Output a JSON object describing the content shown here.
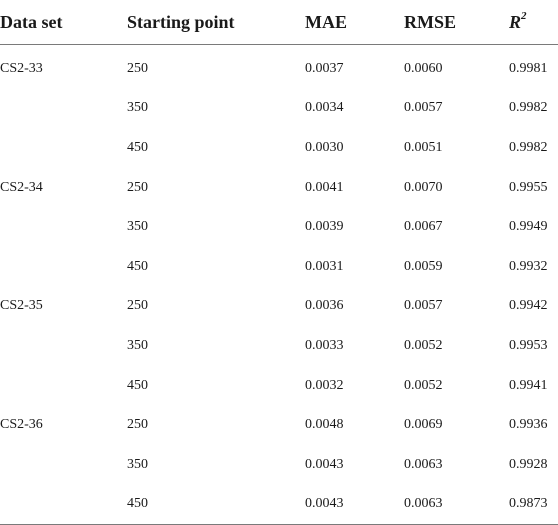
{
  "table": {
    "headers": {
      "data_set": "Data set",
      "starting_point": "Starting point",
      "mae": "MAE",
      "rmse": "RMSE",
      "r2_base": "R",
      "r2_sup": "2"
    },
    "rows": [
      {
        "data_set": "CS2-33",
        "start": "250",
        "mae": "0.0037",
        "rmse": "0.0060",
        "r2": "0.9981"
      },
      {
        "data_set": "",
        "start": "350",
        "mae": "0.0034",
        "rmse": "0.0057",
        "r2": "0.9982"
      },
      {
        "data_set": "",
        "start": "450",
        "mae": "0.0030",
        "rmse": "0.0051",
        "r2": "0.9982"
      },
      {
        "data_set": "CS2-34",
        "start": "250",
        "mae": "0.0041",
        "rmse": "0.0070",
        "r2": "0.9955"
      },
      {
        "data_set": "",
        "start": "350",
        "mae": "0.0039",
        "rmse": "0.0067",
        "r2": "0.9949"
      },
      {
        "data_set": "",
        "start": "450",
        "mae": "0.0031",
        "rmse": "0.0059",
        "r2": "0.9932"
      },
      {
        "data_set": "CS2-35",
        "start": "250",
        "mae": "0.0036",
        "rmse": "0.0057",
        "r2": "0.9942"
      },
      {
        "data_set": "",
        "start": "350",
        "mae": "0.0033",
        "rmse": "0.0052",
        "r2": "0.9953"
      },
      {
        "data_set": "",
        "start": "450",
        "mae": "0.0032",
        "rmse": "0.0052",
        "r2": "0.9941"
      },
      {
        "data_set": "CS2-36",
        "start": "250",
        "mae": "0.0048",
        "rmse": "0.0069",
        "r2": "0.9936"
      },
      {
        "data_set": "",
        "start": "350",
        "mae": "0.0043",
        "rmse": "0.0063",
        "r2": "0.9928"
      },
      {
        "data_set": "",
        "start": "450",
        "mae": "0.0043",
        "rmse": "0.0063",
        "r2": "0.9873"
      }
    ]
  }
}
